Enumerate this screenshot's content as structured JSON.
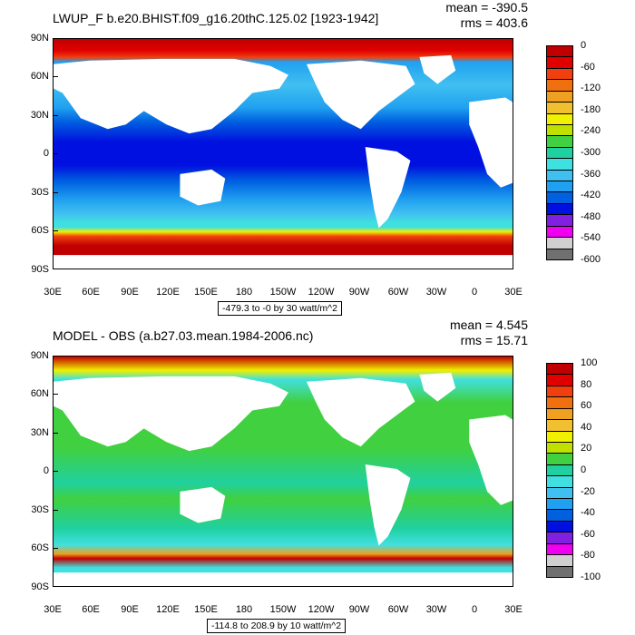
{
  "top": {
    "title": "LWUP_F b.e20.BHIST.f09_g16.20thC.125.02 [1923-1942]",
    "mean": "mean = -390.5",
    "rms": "rms = 403.6",
    "info": "-479.3 to -0 by 30 watt/m^2",
    "colorbar": {
      "labels": [
        "0",
        "-60",
        "-120",
        "-180",
        "-240",
        "-300",
        "-360",
        "-420",
        "-480",
        "-540",
        "-600"
      ],
      "colors": [
        "#c00000",
        "#e00000",
        "#f04010",
        "#f07010",
        "#f0a020",
        "#f0c030",
        "#f0f000",
        "#c0e000",
        "#40d040",
        "#20d0a0",
        "#40e0e0",
        "#40c0f0",
        "#20a0f0",
        "#0060e0",
        "#0010e0",
        "#8020e0",
        "#f000f0",
        "#d0d0d0",
        "#707070"
      ]
    }
  },
  "bottom": {
    "title": "MODEL - OBS (a.b27.03.mean.1984-2006.nc)",
    "mean": "mean = 4.545",
    "rms": "rms = 15.71",
    "info": "-114.8 to 208.9 by 10 watt/m^2",
    "colorbar": {
      "labels": [
        "100",
        "80",
        "60",
        "40",
        "20",
        "0",
        "-20",
        "-40",
        "-60",
        "-80",
        "-100"
      ],
      "colors": [
        "#c00000",
        "#e00000",
        "#f04010",
        "#f07010",
        "#f0a020",
        "#f0c030",
        "#f0f000",
        "#c0e000",
        "#40d040",
        "#20d0a0",
        "#40e0e0",
        "#40c0f0",
        "#20a0f0",
        "#0060e0",
        "#0010e0",
        "#8020e0",
        "#f000f0",
        "#d0d0d0",
        "#707070"
      ]
    }
  },
  "axes": {
    "y_labels": [
      "90N",
      "60N",
      "30N",
      "0",
      "30S",
      "60S",
      "90S"
    ],
    "x_labels": [
      "30E",
      "60E",
      "90E",
      "120E",
      "150E",
      "180",
      "150W",
      "120W",
      "90W",
      "60W",
      "30W",
      "0",
      "30E"
    ]
  }
}
